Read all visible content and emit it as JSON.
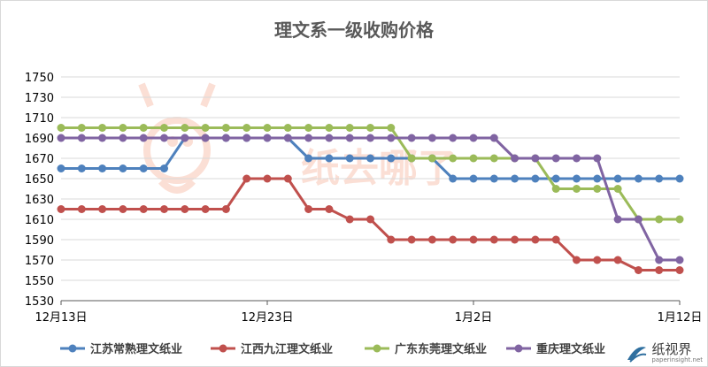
{
  "chart_data": {
    "type": "line",
    "title": "理文系一级收购价格",
    "xlabel": "",
    "ylabel": "",
    "ylim": [
      1530,
      1750
    ],
    "yticks": [
      1530,
      1550,
      1570,
      1590,
      1610,
      1630,
      1650,
      1670,
      1690,
      1710,
      1730,
      1750
    ],
    "x": [
      "12-13",
      "12-14",
      "12-15",
      "12-16",
      "12-17",
      "12-18",
      "12-19",
      "12-20",
      "12-21",
      "12-22",
      "12-23",
      "12-24",
      "12-25",
      "12-26",
      "12-27",
      "12-28",
      "12-29",
      "12-30",
      "12-31",
      "01-01",
      "01-02",
      "01-03",
      "01-04",
      "01-05",
      "01-06",
      "01-07",
      "01-08",
      "01-09",
      "01-10",
      "01-11",
      "01-12"
    ],
    "xtick_labels": [
      {
        "index": 0,
        "label": "12月13日"
      },
      {
        "index": 10,
        "label": "12月23日"
      },
      {
        "index": 20,
        "label": "1月2日"
      },
      {
        "index": 30,
        "label": "1月12日"
      }
    ],
    "grid": true,
    "legend_position": "bottom",
    "series": [
      {
        "name": "江苏常熟理文纸业",
        "color": "#4e81bd",
        "values": [
          1660,
          1660,
          1660,
          1660,
          1660,
          1660,
          1690,
          1690,
          1690,
          1690,
          1690,
          1690,
          1670,
          1670,
          1670,
          1670,
          1670,
          1670,
          1670,
          1650,
          1650,
          1650,
          1650,
          1650,
          1650,
          1650,
          1650,
          1650,
          1650,
          1650,
          1650
        ]
      },
      {
        "name": "江西九江理文纸业",
        "color": "#c0504d",
        "values": [
          1620,
          1620,
          1620,
          1620,
          1620,
          1620,
          1620,
          1620,
          1620,
          1650,
          1650,
          1650,
          1620,
          1620,
          1610,
          1610,
          1590,
          1590,
          1590,
          1590,
          1590,
          1590,
          1590,
          1590,
          1590,
          1570,
          1570,
          1570,
          1560,
          1560,
          1560
        ]
      },
      {
        "name": "广东东莞理文纸业",
        "color": "#9bbb59",
        "values": [
          1700,
          1700,
          1700,
          1700,
          1700,
          1700,
          1700,
          1700,
          1700,
          1700,
          1700,
          1700,
          1700,
          1700,
          1700,
          1700,
          1700,
          1670,
          1670,
          1670,
          1670,
          1670,
          1670,
          1670,
          1640,
          1640,
          1640,
          1640,
          1610,
          1610,
          1610
        ]
      },
      {
        "name": "重庆理文纸业",
        "color": "#8064a2",
        "values": [
          1690,
          1690,
          1690,
          1690,
          1690,
          1690,
          1690,
          1690,
          1690,
          1690,
          1690,
          1690,
          1690,
          1690,
          1690,
          1690,
          1690,
          1690,
          1690,
          1690,
          1690,
          1690,
          1670,
          1670,
          1670,
          1670,
          1670,
          1610,
          1610,
          1570,
          1570
        ]
      }
    ]
  },
  "watermark": {
    "text": "纸去哪了"
  },
  "logo": {
    "name": "纸视界",
    "url": "paperinsight.net"
  }
}
